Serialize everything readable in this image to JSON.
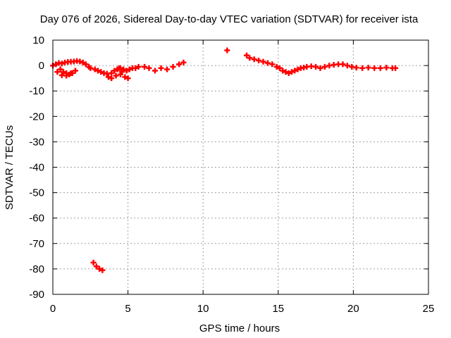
{
  "chart_data": {
    "type": "scatter",
    "title": "Day 076 of 2026, Sidereal Day-to-day VTEC variation (SDTVAR) for receiver ista",
    "xlabel": "GPS time / hours",
    "ylabel": "SDTVAR / TECUs",
    "xlim": [
      0,
      25
    ],
    "ylim": [
      -90,
      10
    ],
    "xticks": [
      0,
      5,
      10,
      15,
      20,
      25
    ],
    "yticks": [
      10,
      0,
      -10,
      -20,
      -30,
      -40,
      -50,
      -60,
      -70,
      -80,
      -90
    ],
    "grid": true,
    "marker": "plus",
    "series": [
      {
        "name": "SDTVAR",
        "color": "#ff0000",
        "x": [
          0.0,
          0.2,
          0.4,
          0.6,
          0.8,
          1.0,
          1.2,
          1.4,
          1.6,
          1.8,
          2.0,
          2.2,
          2.4,
          0.5,
          0.7,
          0.9,
          1.1,
          1.3,
          1.5,
          0.3,
          0.6,
          0.9,
          1.2,
          2.5,
          2.8,
          3.0,
          3.2,
          3.4,
          3.6,
          3.7,
          3.9,
          4.1,
          4.3,
          4.5,
          4.7,
          4.9,
          5.1,
          5.3,
          5.5,
          5.7,
          3.9,
          4.2,
          4.5,
          4.8,
          5.0,
          4.6,
          4.4,
          6.1,
          6.4,
          6.8,
          7.2,
          7.6,
          8.0,
          8.4,
          8.7,
          11.6,
          12.9,
          13.1,
          13.4,
          13.7,
          14.0,
          14.3,
          14.6,
          14.9,
          15.1,
          15.3,
          15.5,
          15.7,
          15.9,
          16.1,
          16.3,
          16.5,
          16.7,
          16.9,
          17.2,
          17.5,
          17.8,
          18.1,
          18.4,
          18.7,
          19.0,
          19.3,
          19.6,
          19.9,
          20.2,
          20.6,
          21.0,
          21.4,
          21.8,
          22.2,
          22.6,
          22.8,
          2.7,
          2.9,
          3.1,
          3.3
        ],
        "y": [
          0.0,
          0.5,
          1.0,
          0.8,
          1.2,
          1.4,
          1.5,
          1.6,
          1.8,
          1.6,
          1.2,
          0.5,
          -0.5,
          -1.5,
          -2.5,
          -3.0,
          -3.5,
          -3.0,
          -2.0,
          -2.5,
          -3.8,
          -4.0,
          -3.0,
          -1.0,
          -1.5,
          -2.0,
          -2.5,
          -3.0,
          -3.2,
          -4.5,
          -3.0,
          -2.0,
          -1.5,
          -1.0,
          -1.5,
          -2.0,
          -1.5,
          -1.0,
          -1.0,
          -0.5,
          -5.0,
          -4.0,
          -3.5,
          -4.5,
          -5.0,
          -2.5,
          -1.0,
          -0.5,
          -1.0,
          -2.0,
          -1.0,
          -1.5,
          -0.5,
          0.5,
          1.2,
          6.0,
          4.0,
          3.0,
          2.5,
          2.0,
          1.5,
          1.0,
          0.5,
          -0.5,
          -1.0,
          -2.0,
          -2.5,
          -3.0,
          -2.5,
          -2.0,
          -1.5,
          -1.0,
          -0.8,
          -0.5,
          -0.3,
          -0.5,
          -1.0,
          -0.5,
          0.0,
          0.3,
          0.5,
          0.5,
          0.0,
          -0.5,
          -0.8,
          -1.0,
          -0.8,
          -1.0,
          -1.0,
          -0.8,
          -1.0,
          -1.0,
          -77.5,
          -79.0,
          -80.0,
          -80.5
        ]
      }
    ]
  }
}
